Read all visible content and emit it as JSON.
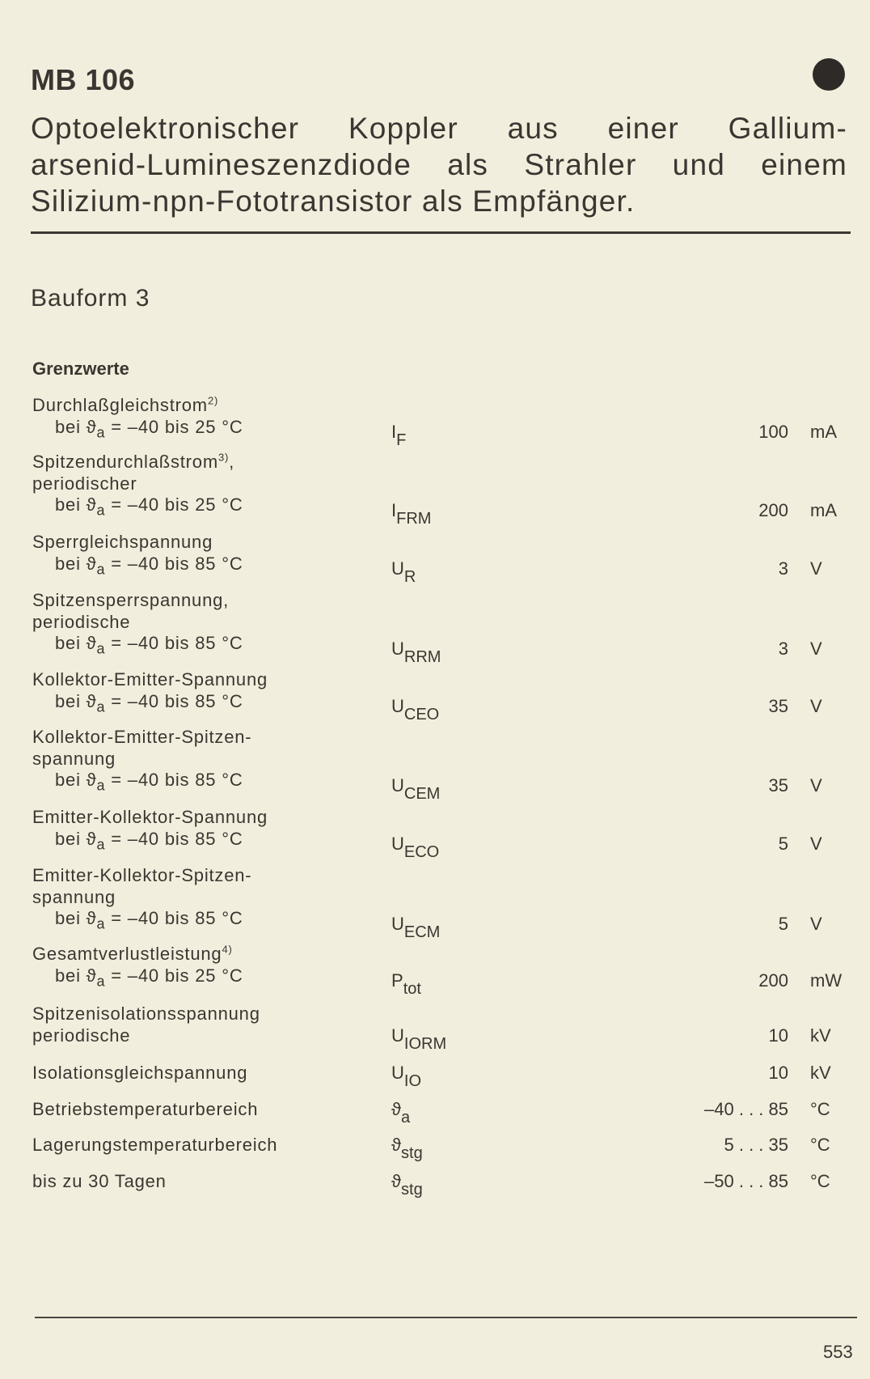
{
  "header": {
    "title": "MB 106",
    "marker_icon": "filled-circle",
    "description_lines": [
      "Optoelektronischer Koppler aus einer Gallium-",
      "arsenid-Lumineszenzdiode als Strahler und einem",
      "Silizium-npn-Fototransistor als Empfänger."
    ]
  },
  "bauform": "Bauform 3",
  "section_title": "Grenzwerte",
  "rows": [
    {
      "lines": [
        {
          "t": "Durchlaßgleichstrom",
          "sup": "2)"
        },
        {
          "t": "bei ϑ",
          "sub": "a",
          "rest": " = –40 bis 25 °C",
          "ind": true
        }
      ],
      "sym": "I",
      "symsub": "F",
      "value": "100",
      "unit": "mA"
    },
    {
      "lines": [
        {
          "t": "Spitzendurchlaßstrom",
          "sup": "3)",
          "rest": ","
        },
        {
          "t": "periodischer"
        },
        {
          "t": "bei ϑ",
          "sub": "a",
          "rest": " = –40 bis 25 °C",
          "ind": true
        }
      ],
      "sym": "I",
      "symsub": "FRM",
      "value": "200",
      "unit": "mA"
    },
    {
      "lines": [
        {
          "t": "Sperrgleichspannung"
        },
        {
          "t": "bei ϑ",
          "sub": "a",
          "rest": " = –40 bis 85 °C",
          "ind": true
        }
      ],
      "sym": "U",
      "symsub": "R",
      "value": "3",
      "unit": "V"
    },
    {
      "lines": [
        {
          "t": "Spitzensperrspannung,"
        },
        {
          "t": "periodische"
        },
        {
          "t": "bei ϑ",
          "sub": "a",
          "rest": " = –40 bis 85 °C",
          "ind": true
        }
      ],
      "sym": "U",
      "symsub": "RRM",
      "value": "3",
      "unit": "V"
    },
    {
      "lines": [
        {
          "t": "Kollektor-Emitter-Spannung"
        },
        {
          "t": "bei ϑ",
          "sub": "a",
          "rest": " = –40 bis 85 °C",
          "ind": true
        }
      ],
      "sym": "U",
      "symsub": "CEO",
      "value": "35",
      "unit": "V"
    },
    {
      "lines": [
        {
          "t": "Kollektor-Emitter-Spitzen-"
        },
        {
          "t": "spannung"
        },
        {
          "t": "bei ϑ",
          "sub": "a",
          "rest": " = –40 bis 85 °C",
          "ind": true
        }
      ],
      "sym": "U",
      "symsub": "CEM",
      "value": "35",
      "unit": "V"
    },
    {
      "lines": [
        {
          "t": "Emitter-Kollektor-Spannung"
        },
        {
          "t": "bei ϑ",
          "sub": "a",
          "rest": " = –40 bis 85 °C",
          "ind": true
        }
      ],
      "sym": "U",
      "symsub": "ECO",
      "value": "5",
      "unit": "V"
    },
    {
      "lines": [
        {
          "t": "Emitter-Kollektor-Spitzen-"
        },
        {
          "t": "spannung"
        },
        {
          "t": "bei ϑ",
          "sub": "a",
          "rest": " = –40 bis 85 °C",
          "ind": true
        }
      ],
      "sym": "U",
      "symsub": "ECM",
      "value": "5",
      "unit": "V"
    },
    {
      "lines": [
        {
          "t": "Gesamtverlustleistung",
          "sup": "4)"
        },
        {
          "t": "bei ϑ",
          "sub": "a",
          "rest": " = –40 bis 25 °C",
          "ind": true
        }
      ],
      "sym": "P",
      "symsub": "tot",
      "value": "200",
      "unit": "mW"
    },
    {
      "lines": [
        {
          "t": "Spitzenisolationsspannung"
        },
        {
          "t": "periodische"
        }
      ],
      "sym": "U",
      "symsub": "IORM",
      "value": "10",
      "unit": "kV"
    },
    {
      "lines": [
        {
          "t": "Isolationsgleichspannung"
        }
      ],
      "sym": "U",
      "symsub": "IO",
      "value": "10",
      "unit": "kV"
    },
    {
      "lines": [
        {
          "t": "Betriebstemperaturbereich"
        }
      ],
      "sym": "ϑ",
      "symsub": "a",
      "value": "–40 . . . 85",
      "unit": "°C"
    },
    {
      "lines": [
        {
          "t": "Lagerungstemperaturbereich"
        }
      ],
      "sym": "ϑ",
      "symsub": "stg",
      "value": "5 . . . 35",
      "unit": "°C"
    },
    {
      "lines": [
        {
          "t": "bis zu 30 Tagen"
        }
      ],
      "sym": "ϑ",
      "symsub": "stg",
      "value": "–50 . . . 85",
      "unit": "°C"
    }
  ],
  "footer": {
    "page_number": "553"
  }
}
